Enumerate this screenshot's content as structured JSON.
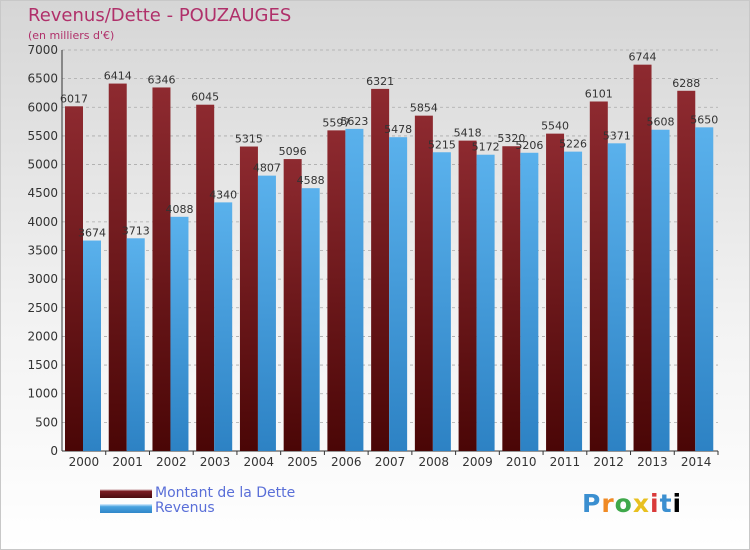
{
  "title": "Revenus/Dette - POUZAUGES",
  "subtitle": "(en milliers d'€)",
  "colors": {
    "title": "#b0306a",
    "debt": "#7a1c24",
    "revenue": "#4aa3e0",
    "legend_text": "#5a6fd8",
    "grid": "#aaaaaa"
  },
  "logo": "Proxiti",
  "chart_data": {
    "type": "bar",
    "categories": [
      "2000",
      "2001",
      "2002",
      "2003",
      "2004",
      "2005",
      "2006",
      "2007",
      "2008",
      "2009",
      "2010",
      "2011",
      "2012",
      "2013",
      "2014"
    ],
    "series": [
      {
        "name": "Montant de la Dette",
        "values": [
          6017,
          6414,
          6346,
          6045,
          5315,
          5096,
          5597,
          6321,
          5854,
          5418,
          5320,
          5540,
          6101,
          6744,
          6288
        ]
      },
      {
        "name": "Revenus",
        "values": [
          3674,
          3713,
          4088,
          4340,
          4807,
          4588,
          5623,
          5478,
          5215,
          5172,
          5206,
          5226,
          5371,
          5608,
          5650
        ]
      }
    ],
    "ylim": [
      0,
      7000
    ],
    "yticks": [
      0,
      500,
      1000,
      1500,
      2000,
      2500,
      3000,
      3500,
      4000,
      4500,
      5000,
      5500,
      6000,
      6500,
      7000
    ],
    "grid": true,
    "legend_position": "bottom-left"
  }
}
